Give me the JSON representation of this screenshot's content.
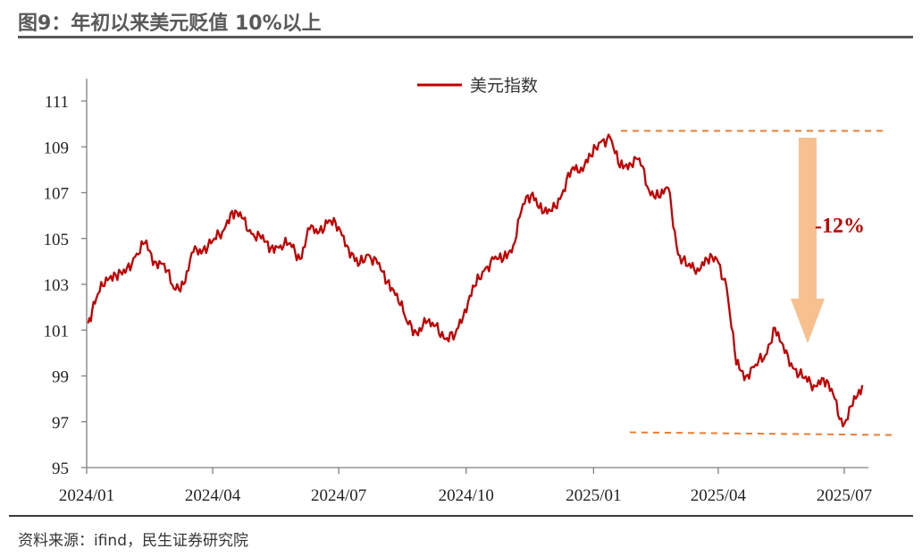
{
  "header": {
    "title": "图9：年初以来美元贬值 10%以上"
  },
  "footer": {
    "source": "资料来源：ifind，民生证券研究院"
  },
  "colors": {
    "series": "#C00000",
    "reference_line": "#ED7D31",
    "arrow": "#F8C08F",
    "annotation": "#C00000"
  },
  "chart_data": {
    "type": "line",
    "title": "",
    "xlabel": "",
    "ylabel": "",
    "ylim": [
      95,
      111
    ],
    "yticks": [
      95,
      97,
      99,
      101,
      103,
      105,
      107,
      109,
      111
    ],
    "xlim": [
      "2024-01",
      "2025-07"
    ],
    "xticks": [
      "2024/01",
      "2024/04",
      "2024/07",
      "2024/10",
      "2025/01",
      "2025/04",
      "2025/07"
    ],
    "grid": false,
    "legend": {
      "position": "top",
      "entries": [
        "美元指数"
      ]
    },
    "series": [
      {
        "name": "美元指数",
        "x": [
          "2024-01-02",
          "2024-01-08",
          "2024-01-15",
          "2024-01-22",
          "2024-01-29",
          "2024-02-05",
          "2024-02-12",
          "2024-02-19",
          "2024-02-26",
          "2024-03-04",
          "2024-03-11",
          "2024-03-18",
          "2024-03-25",
          "2024-04-01",
          "2024-04-08",
          "2024-04-15",
          "2024-04-22",
          "2024-04-29",
          "2024-05-06",
          "2024-05-13",
          "2024-05-20",
          "2024-05-27",
          "2024-06-03",
          "2024-06-10",
          "2024-06-17",
          "2024-06-24",
          "2024-07-01",
          "2024-07-08",
          "2024-07-15",
          "2024-07-22",
          "2024-07-29",
          "2024-08-05",
          "2024-08-12",
          "2024-08-19",
          "2024-08-26",
          "2024-09-02",
          "2024-09-09",
          "2024-09-16",
          "2024-09-23",
          "2024-09-30",
          "2024-10-07",
          "2024-10-14",
          "2024-10-21",
          "2024-10-28",
          "2024-11-04",
          "2024-11-11",
          "2024-11-18",
          "2024-11-25",
          "2024-12-02",
          "2024-12-09",
          "2024-12-16",
          "2024-12-23",
          "2024-12-30",
          "2025-01-06",
          "2025-01-13",
          "2025-01-20",
          "2025-01-27",
          "2025-02-03",
          "2025-02-10",
          "2025-02-17",
          "2025-02-24",
          "2025-03-03",
          "2025-03-10",
          "2025-03-17",
          "2025-03-24",
          "2025-03-31",
          "2025-04-07",
          "2025-04-14",
          "2025-04-21",
          "2025-04-28",
          "2025-05-05",
          "2025-05-12",
          "2025-05-19",
          "2025-05-26",
          "2025-06-02",
          "2025-06-09",
          "2025-06-16",
          "2025-06-23",
          "2025-06-30",
          "2025-07-07",
          "2025-07-14"
        ],
        "values": [
          101.3,
          102.4,
          103.3,
          103.4,
          103.5,
          104.2,
          104.8,
          104.0,
          103.9,
          102.8,
          103.0,
          104.4,
          104.5,
          104.9,
          105.3,
          106.2,
          105.9,
          105.2,
          105.0,
          104.6,
          104.7,
          104.8,
          104.1,
          105.4,
          105.3,
          105.8,
          105.5,
          104.6,
          103.8,
          104.3,
          103.9,
          103.1,
          102.6,
          101.4,
          100.9,
          101.3,
          101.2,
          100.6,
          100.8,
          101.9,
          102.9,
          103.6,
          104.1,
          104.1,
          104.7,
          106.5,
          107.0,
          106.1,
          106.2,
          106.9,
          108.0,
          108.1,
          108.6,
          109.2,
          109.4,
          108.1,
          108.3,
          108.5,
          107.1,
          106.8,
          107.2,
          104.3,
          103.8,
          103.7,
          104.1,
          104.1,
          102.9,
          99.5,
          99.0,
          99.5,
          99.9,
          101.1,
          100.0,
          99.3,
          98.9,
          98.6,
          98.9,
          98.2,
          96.8,
          97.7,
          98.6
        ]
      }
    ],
    "annotations": [
      {
        "label": "-12%",
        "from": 109.7,
        "to": 96.5
      }
    ],
    "reference_levels": [
      109.7,
      96.5
    ]
  }
}
